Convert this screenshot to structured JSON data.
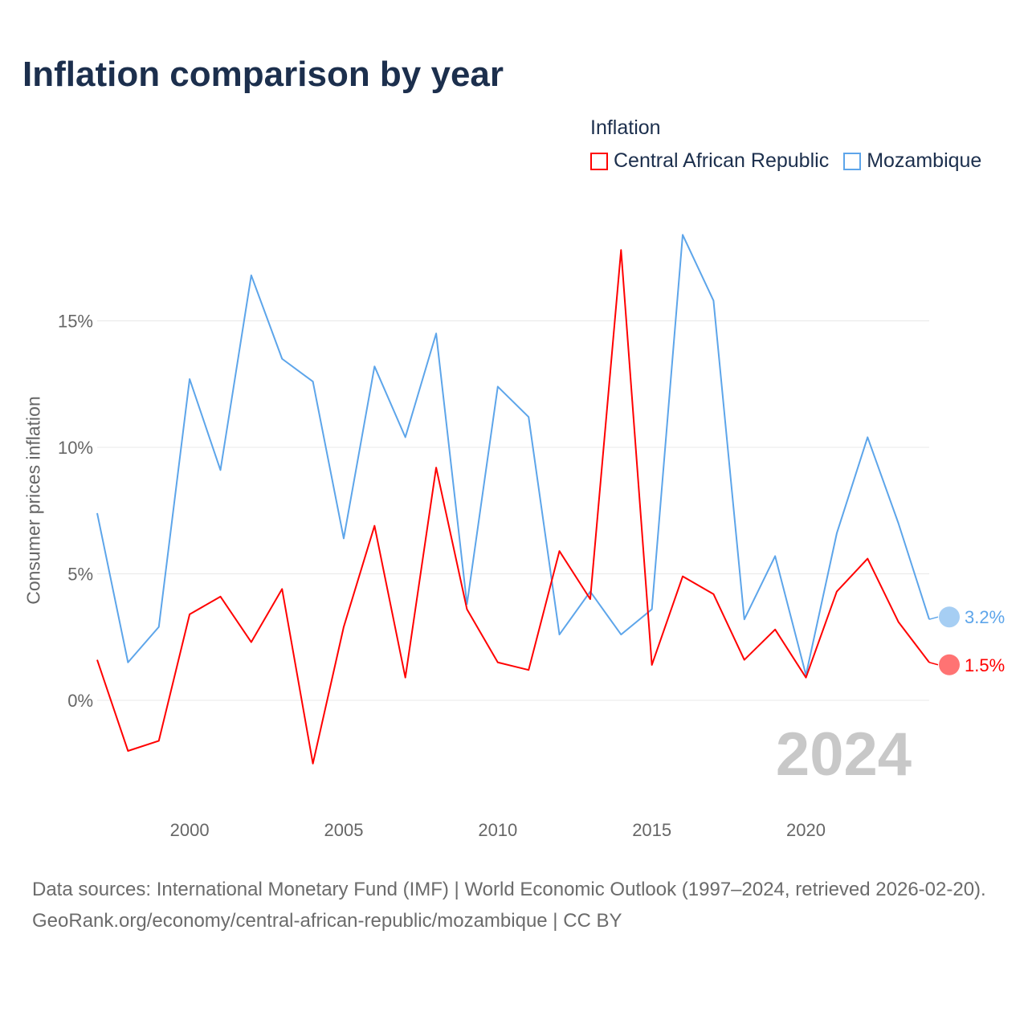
{
  "title": "Inflation comparison by year",
  "chart_data": {
    "type": "line",
    "title": "Inflation comparison by year",
    "ylabel": "Consumer prices inflation",
    "xlabel": "",
    "legend_title": "Inflation",
    "legend_placement": "top-right",
    "x": [
      1997,
      1998,
      1999,
      2000,
      2001,
      2002,
      2003,
      2004,
      2005,
      2006,
      2007,
      2008,
      2009,
      2010,
      2011,
      2012,
      2013,
      2014,
      2015,
      2016,
      2017,
      2018,
      2019,
      2020,
      2021,
      2022,
      2023,
      2024
    ],
    "xlim": [
      1997,
      2024
    ],
    "ylim": [
      -3.5,
      20
    ],
    "x_ticks": [
      2000,
      2005,
      2010,
      2015,
      2020
    ],
    "x_tick_labels": [
      "2000",
      "2005",
      "2010",
      "2015",
      "2020"
    ],
    "y_ticks": [
      0,
      5,
      10,
      15
    ],
    "y_tick_labels": [
      "0%",
      "5%",
      "10%",
      "15%"
    ],
    "grid": true,
    "year_watermark": "2024",
    "series": [
      {
        "name": "Central African Republic",
        "color": "#ff0000",
        "end_label": "1.5%",
        "values": [
          1.6,
          -2.0,
          -1.6,
          3.4,
          4.1,
          2.3,
          4.4,
          -2.5,
          2.9,
          6.9,
          0.9,
          9.2,
          3.6,
          1.5,
          1.2,
          5.9,
          4.0,
          17.8,
          1.4,
          4.9,
          4.2,
          1.6,
          2.8,
          0.9,
          4.3,
          5.6,
          3.1,
          1.5
        ]
      },
      {
        "name": "Mozambique",
        "color": "#5da5ea",
        "end_label": "3.2%",
        "values": [
          7.4,
          1.5,
          2.9,
          12.7,
          9.1,
          16.8,
          13.5,
          12.6,
          6.4,
          13.2,
          10.4,
          14.5,
          3.8,
          12.4,
          11.2,
          2.6,
          4.3,
          2.6,
          3.6,
          18.4,
          15.8,
          3.2,
          5.7,
          1.0,
          6.6,
          10.4,
          7.0,
          3.2
        ]
      }
    ]
  },
  "footer": {
    "sources": "Data sources: International Monetary Fund (IMF) | World Economic Outlook (1997–2024, retrieved 2026-02-20).",
    "link": "GeoRank.org/economy/central-african-republic/mozambique | CC BY"
  }
}
